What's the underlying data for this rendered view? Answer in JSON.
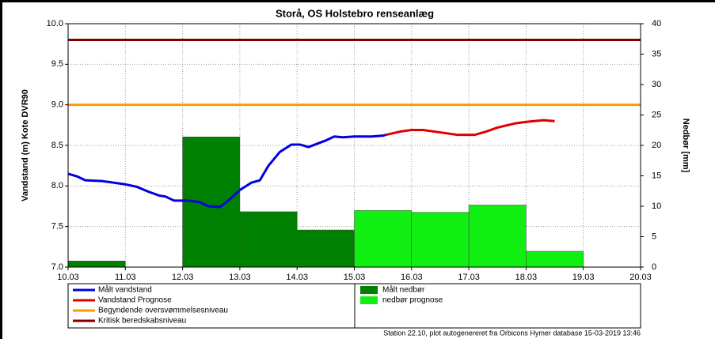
{
  "chart_data": {
    "type": "combo",
    "title": "Storå, OS Holstebro renseanlæg",
    "ylabel": "Vandstand (m) Kote DVR90",
    "y2label": "Nedbør [mm]",
    "footer": "Station 22.10, plot autogenereret fra Orbicons Hymer database 15-03-2019 13:46",
    "xlim": [
      10,
      20
    ],
    "xticks": [
      {
        "value": 10,
        "label": "10.03"
      },
      {
        "value": 11,
        "label": "11.03"
      },
      {
        "value": 12,
        "label": "12.03"
      },
      {
        "value": 13,
        "label": "13.03"
      },
      {
        "value": 14,
        "label": "14.03"
      },
      {
        "value": 15,
        "label": "15.03"
      },
      {
        "value": 16,
        "label": "16.03"
      },
      {
        "value": 17,
        "label": "17.03"
      },
      {
        "value": 18,
        "label": "18.03"
      },
      {
        "value": 19,
        "label": "19.03"
      },
      {
        "value": 20,
        "label": "20.03"
      }
    ],
    "ylim": [
      7,
      10
    ],
    "yticks": [
      {
        "value": 7,
        "label": "7.0"
      },
      {
        "value": 7.5,
        "label": "7.5"
      },
      {
        "value": 8,
        "label": "8.0"
      },
      {
        "value": 8.5,
        "label": "8.5"
      },
      {
        "value": 9,
        "label": "9.0"
      },
      {
        "value": 9.5,
        "label": "9.5"
      },
      {
        "value": 10,
        "label": "10.0"
      }
    ],
    "y2lim": [
      0,
      40
    ],
    "y2ticks": [
      0,
      5,
      10,
      15,
      20,
      25,
      30,
      35,
      40
    ],
    "grid": true,
    "series": [
      {
        "name": "Målt vandstand",
        "type": "line",
        "color": "#0000e0",
        "x": [
          10.0,
          10.15,
          10.3,
          10.6,
          11.0,
          11.2,
          11.4,
          11.6,
          11.7,
          11.85,
          12.1,
          12.3,
          12.45,
          12.65,
          12.8,
          13.0,
          13.2,
          13.35,
          13.5,
          13.7,
          13.9,
          14.05,
          14.2,
          14.35,
          14.5,
          14.65,
          14.8,
          15.0,
          15.3,
          15.5,
          15.55
        ],
        "values": [
          8.15,
          8.12,
          8.07,
          8.06,
          8.02,
          7.99,
          7.93,
          7.88,
          7.87,
          7.82,
          7.82,
          7.8,
          7.75,
          7.74,
          7.82,
          7.95,
          8.04,
          8.07,
          8.25,
          8.42,
          8.51,
          8.51,
          8.48,
          8.52,
          8.56,
          8.61,
          8.6,
          8.61,
          8.61,
          8.62,
          8.63
        ]
      },
      {
        "name": "Vandstand Prognose",
        "type": "line",
        "color": "#e00000",
        "x": [
          15.55,
          15.8,
          16.0,
          16.2,
          16.5,
          16.8,
          17.1,
          17.3,
          17.5,
          17.8,
          18.0,
          18.3,
          18.5
        ],
        "values": [
          8.63,
          8.67,
          8.69,
          8.69,
          8.66,
          8.63,
          8.63,
          8.67,
          8.72,
          8.77,
          8.79,
          8.81,
          8.8
        ]
      },
      {
        "name": "Begyndende oversvømmelsesniveau",
        "type": "hline",
        "color": "#ff9900",
        "values": [
          9.0
        ]
      },
      {
        "name": "Kritisk beredskabsniveau",
        "type": "hline",
        "color": "#800000",
        "values": [
          9.8
        ]
      },
      {
        "name": "Målt nedbør",
        "type": "histogram",
        "axis": "y2",
        "color": "#008000",
        "bins": [
          10,
          11,
          12,
          13,
          14,
          15
        ],
        "values": [
          1,
          0,
          21.4,
          9.1,
          6.1
        ]
      },
      {
        "name": "nedbør prognose",
        "type": "histogram",
        "axis": "y2",
        "color": "#11ee11",
        "bins": [
          15,
          16,
          17,
          18,
          19
        ],
        "values": [
          9.3,
          9,
          10.2,
          2.6
        ]
      }
    ]
  }
}
